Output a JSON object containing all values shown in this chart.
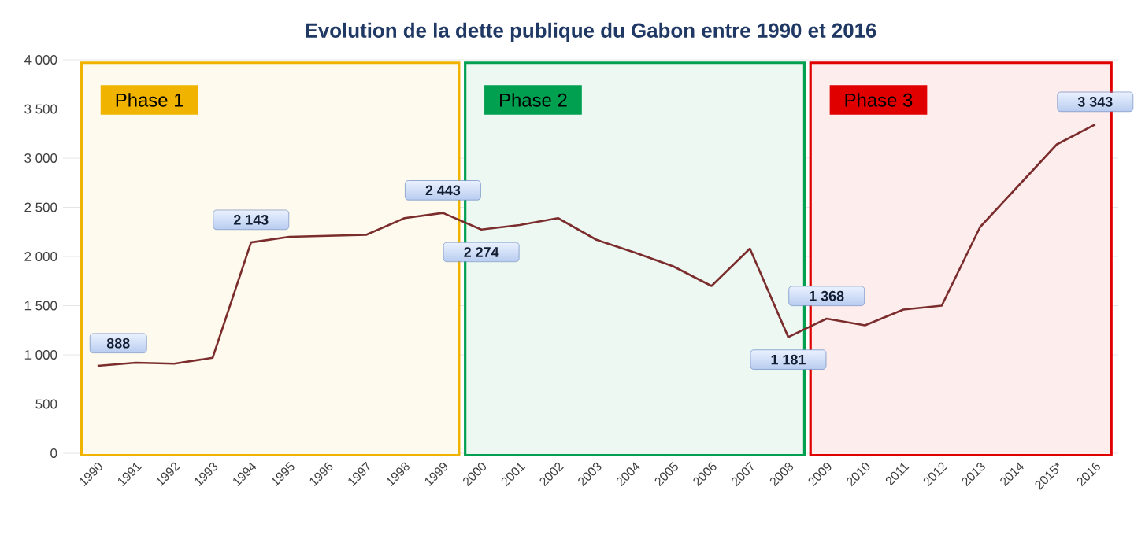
{
  "chart_data": {
    "type": "line",
    "title": "Evolution de la dette publique du Gabon entre 1990 et 2016",
    "categories": [
      "1990",
      "1991",
      "1992",
      "1993",
      "1994",
      "1995",
      "1996",
      "1997",
      "1998",
      "1999",
      "2000",
      "2001",
      "2002",
      "2003",
      "2004",
      "2005",
      "2006",
      "2007",
      "2008",
      "2009",
      "2010",
      "2011",
      "2012",
      "2013",
      "2014",
      "2015*",
      "2016"
    ],
    "series": [
      {
        "color": "#7b2c2c",
        "values": [
          888,
          920,
          910,
          970,
          2143,
          2200,
          2210,
          2220,
          2390,
          2443,
          2274,
          2320,
          2390,
          2170,
          2040,
          1900,
          1700,
          2080,
          1181,
          1368,
          1300,
          1460,
          1500,
          2300,
          2720,
          3140,
          3343
        ],
        "value_labels": [
          "888",
          null,
          null,
          null,
          "2 143",
          null,
          null,
          null,
          null,
          "2 443",
          "2 274",
          null,
          null,
          null,
          null,
          null,
          null,
          null,
          "1 181",
          "1 368",
          null,
          null,
          null,
          null,
          null,
          null,
          "3 343"
        ]
      }
    ],
    "ylim": [
      0,
      4000
    ],
    "yticks": [
      0,
      500,
      {
        "value": 1000,
        "label": "1 000"
      },
      {
        "value": 1500,
        "label": "1 500"
      },
      {
        "value": 2000,
        "label": "2 000"
      },
      {
        "value": 2500,
        "label": "2 500"
      },
      {
        "value": 3000,
        "label": "3 000"
      },
      {
        "value": 3500,
        "label": "3 500"
      },
      {
        "value": 4000,
        "label": "4 000"
      }
    ],
    "grid": "y",
    "legend": false,
    "marker": "none",
    "line_style": "solid",
    "bands": [
      {
        "axis": "x",
        "from": "1990",
        "to": "1999",
        "label": "Phase 1",
        "color": "#f0b400"
      },
      {
        "axis": "x",
        "from": "2000",
        "to": "2008",
        "label": "Phase 2",
        "color": "#00a050"
      },
      {
        "axis": "x",
        "from": "2009",
        "to": "2016",
        "label": "Phase 3",
        "color": "#e00000"
      }
    ]
  }
}
